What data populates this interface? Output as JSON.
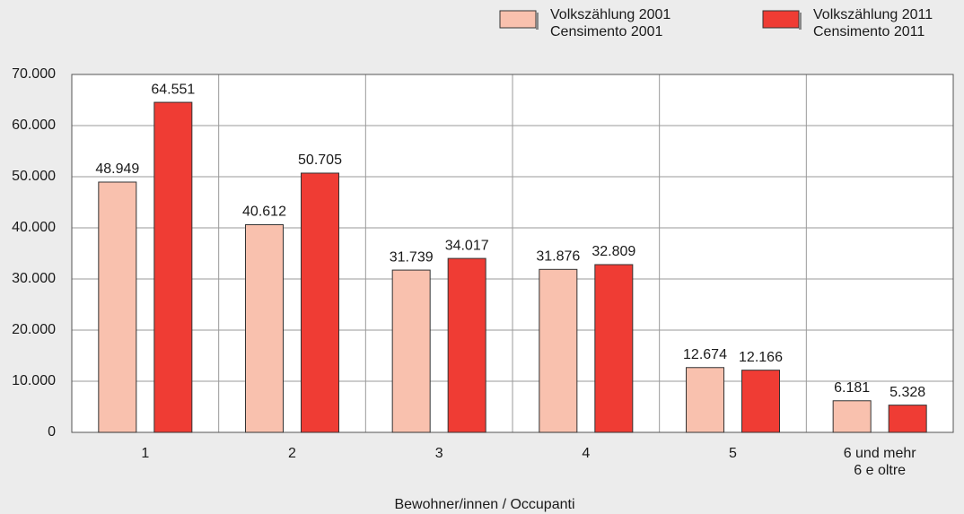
{
  "chart_data": {
    "type": "bar",
    "xlabel": "Bewohner/innen / Occupanti",
    "categories": [
      "1",
      "2",
      "3",
      "4",
      "5",
      "6 und mehr\n6 e oltre"
    ],
    "series": [
      {
        "name": "Volkszählung 2001\nCensimento 2001",
        "color": "#f9c1ae",
        "values": [
          48949,
          40612,
          31739,
          31876,
          12674,
          6181
        ],
        "value_labels": [
          "48.949",
          "40.612",
          "31.739",
          "31.876",
          "12.674",
          "6.181"
        ]
      },
      {
        "name": "Volkszählung 2011\nCensimento 2011",
        "color": "#ef3c34",
        "values": [
          64551,
          50705,
          34017,
          32809,
          12166,
          5328
        ],
        "value_labels": [
          "64.551",
          "50.705",
          "34.017",
          "32.809",
          "12.166",
          "5.328"
        ]
      }
    ],
    "ylim": [
      0,
      70000
    ],
    "yticks": [
      {
        "value": 0,
        "label": "0"
      },
      {
        "value": 10000,
        "label": "10.000"
      },
      {
        "value": 20000,
        "label": "20.000"
      },
      {
        "value": 30000,
        "label": "30.000"
      },
      {
        "value": 40000,
        "label": "40.000"
      },
      {
        "value": 50000,
        "label": "50.000"
      },
      {
        "value": 60000,
        "label": "60.000"
      },
      {
        "value": 70000,
        "label": "70.000"
      }
    ],
    "grid": true
  }
}
